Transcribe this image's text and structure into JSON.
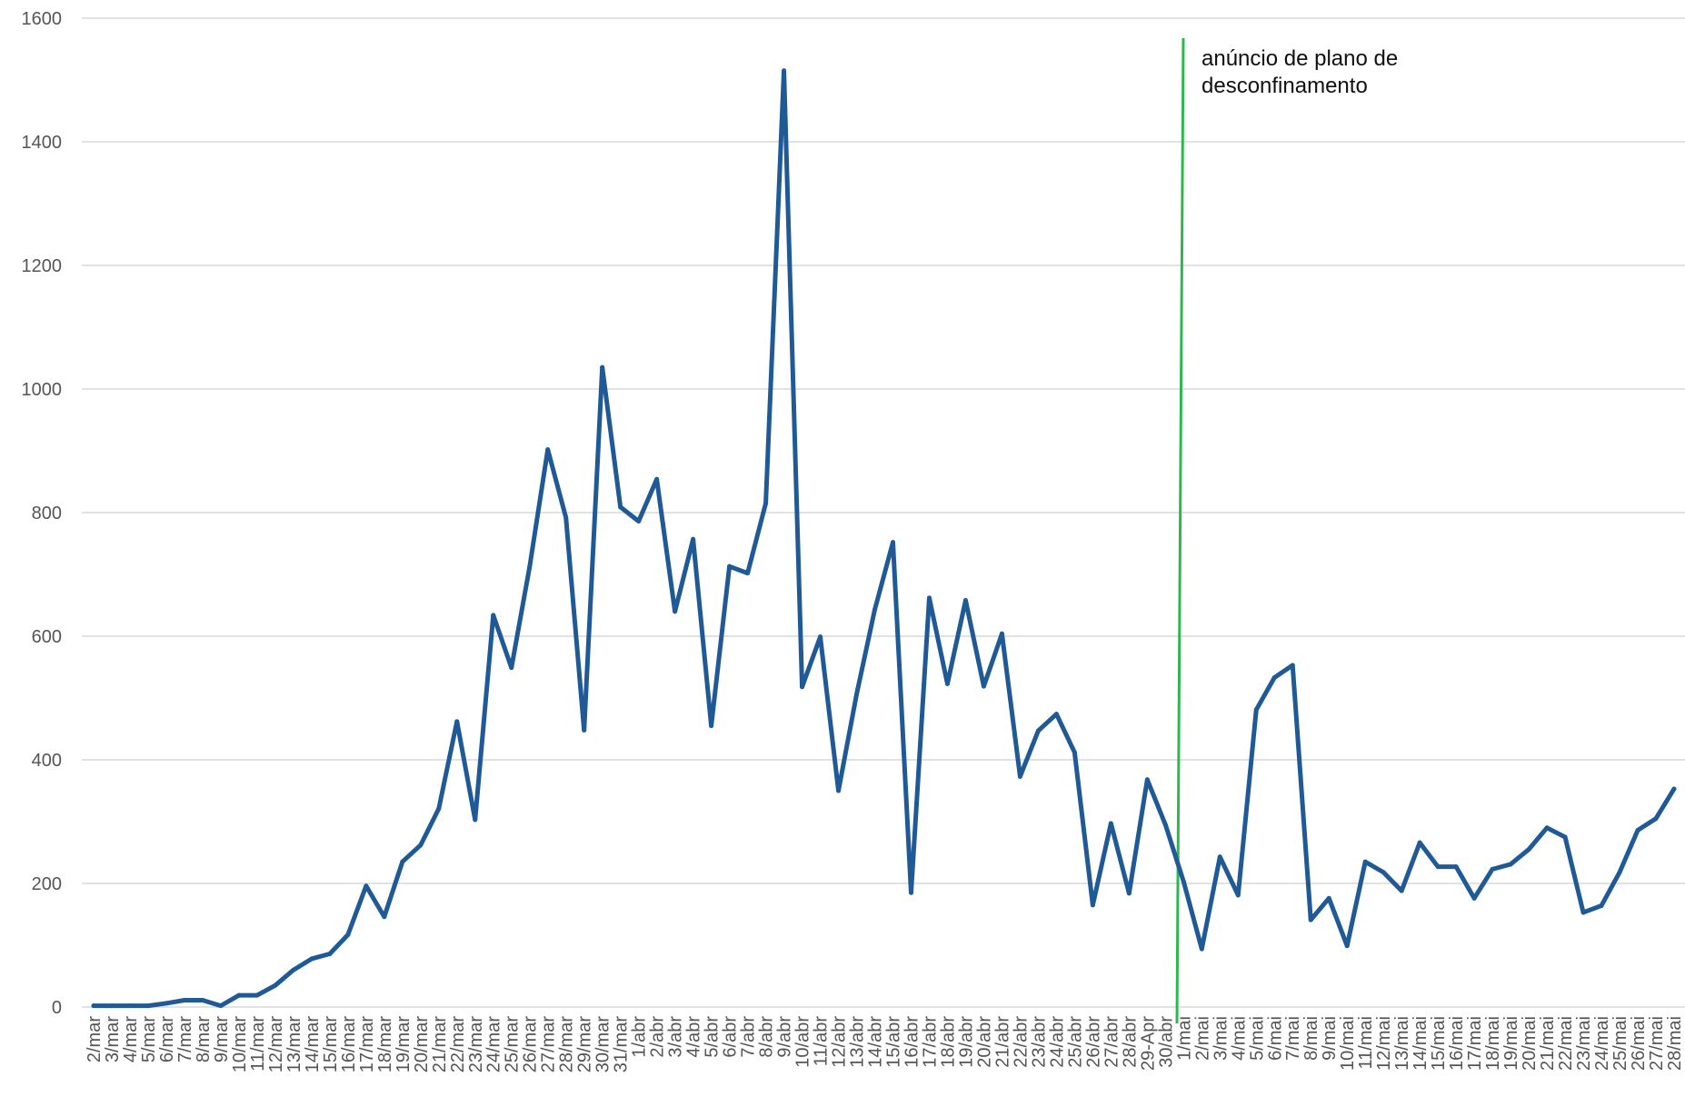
{
  "chart_data": {
    "type": "line",
    "title": "",
    "xlabel": "",
    "ylabel": "",
    "ylim": [
      0,
      1600
    ],
    "yticks": [
      0,
      200,
      400,
      600,
      800,
      1000,
      1200,
      1400,
      1600
    ],
    "grid": true,
    "legend": "none",
    "categories": [
      "2/mar",
      "3/mar",
      "4/mar",
      "5/mar",
      "6/mar",
      "7/mar",
      "8/mar",
      "9/mar",
      "10/mar",
      "11/mar",
      "12/mar",
      "13/mar",
      "14/mar",
      "15/mar",
      "16/mar",
      "17/mar",
      "18/mar",
      "19/mar",
      "20/mar",
      "21/mar",
      "22/mar",
      "23/mar",
      "24/mar",
      "25/mar",
      "26/mar",
      "27/mar",
      "28/mar",
      "29/mar",
      "30/mar",
      "31/mar",
      "1/abr",
      "2/abr",
      "3/abr",
      "4/abr",
      "5/abr",
      "6/abr",
      "7/abr",
      "8/abr",
      "9/abr",
      "10/abr",
      "11/abr",
      "12/abr",
      "13/abr",
      "14/abr",
      "15/abr",
      "16/abr",
      "17/abr",
      "18/abr",
      "19/abr",
      "20/abr",
      "21/abr",
      "22/abr",
      "23/abr",
      "24/abr",
      "25/abr",
      "26/abr",
      "27/abr",
      "28/abr",
      "29-Apr",
      "30/abr",
      "1/mai",
      "2/mai",
      "3/mai",
      "4/mai",
      "5/mai",
      "6/mai",
      "7/mai",
      "8/mai",
      "9/mai",
      "10/mai",
      "11/mai",
      "12/mai",
      "13/mai",
      "14/mai",
      "15/mai",
      "16/mai",
      "17/mai",
      "18/mai",
      "19/mai",
      "20/mai",
      "21/mai",
      "22/mai",
      "23/mai",
      "24/mai",
      "25/mai",
      "26/mai",
      "27/mai",
      "28/mai"
    ],
    "series": [
      {
        "name": "",
        "color": "#1f5a96",
        "values": [
          2,
          2,
          2,
          2,
          6,
          11,
          11,
          2,
          19,
          19,
          35,
          60,
          78,
          86,
          117,
          196,
          146,
          235,
          262,
          321,
          462,
          303,
          634,
          549,
          712,
          902,
          792,
          448,
          1035,
          809,
          786,
          854,
          640,
          757,
          455,
          713,
          702,
          815,
          1515,
          518,
          599,
          350,
          506,
          643,
          752,
          185,
          662,
          523,
          658,
          519,
          604,
          373,
          447,
          474,
          412,
          165,
          297,
          184,
          368,
          295,
          203,
          94,
          243,
          181,
          481,
          533,
          553,
          141,
          176,
          99,
          235,
          218,
          188,
          266,
          227,
          227,
          176,
          223,
          231,
          255,
          290,
          275,
          153,
          164,
          218,
          286,
          305,
          353
        ]
      }
    ],
    "annotation": {
      "text_line1": "anúncio de plano de",
      "text_line2": "desconfinamento",
      "marker_color": "#2db84d"
    }
  }
}
